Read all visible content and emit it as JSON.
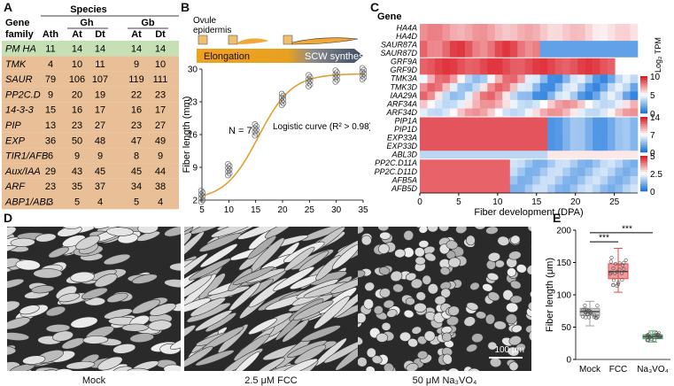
{
  "panels": {
    "a": "A",
    "b": "B",
    "c": "C",
    "d": "D",
    "e": "E"
  },
  "table": {
    "col_gene_family": "Gene family",
    "species": "Species",
    "gh": "Gh",
    "gb": "Gb",
    "ath": "Ath",
    "at": "At",
    "dt": "Dt",
    "rows": [
      {
        "name": "PM HA",
        "vals": [
          "11",
          "14",
          "14",
          "14",
          "14"
        ],
        "highlight": "green"
      },
      {
        "name": "TMK",
        "vals": [
          "4",
          "10",
          "11",
          "9",
          "10"
        ]
      },
      {
        "name": "SAUR",
        "vals": [
          "79",
          "106",
          "107",
          "119",
          "111"
        ]
      },
      {
        "name": "PP2C.D",
        "vals": [
          "9",
          "20",
          "19",
          "22",
          "23"
        ]
      },
      {
        "name": "14-3-3",
        "vals": [
          "15",
          "16",
          "17",
          "16",
          "17"
        ]
      },
      {
        "name": "PIP",
        "vals": [
          "13",
          "23",
          "27",
          "23",
          "27"
        ]
      },
      {
        "name": "EXP",
        "vals": [
          "36",
          "50",
          "48",
          "47",
          "49"
        ]
      },
      {
        "name": "TIR1/AFB",
        "vals": [
          "6",
          "9",
          "9",
          "8",
          "9"
        ]
      },
      {
        "name": "Aux/IAA",
        "vals": [
          "29",
          "43",
          "45",
          "45",
          "44"
        ]
      },
      {
        "name": "ARF",
        "vals": [
          "23",
          "35",
          "37",
          "34",
          "38"
        ]
      },
      {
        "name": "ABP1/ABL",
        "vals": [
          "3",
          "5",
          "4",
          "5",
          "4"
        ]
      }
    ],
    "colors": {
      "green": "#c5e0b4",
      "orange": "#e8bf96"
    }
  },
  "panel_b": {
    "ovule_label_1": "Ovule",
    "ovule_label_2": "epidermis",
    "elongation": "Elongation",
    "scw": "SCW synthesis",
    "n_label": "N = 7",
    "curve_label": "Logistic curve (R² > 0.98)",
    "chart_data": {
      "type": "scatter",
      "xlabel": "Fiber development (DPA)",
      "ylabel": "Fiber length (mm)",
      "x_ticks": [
        5,
        10,
        15,
        20,
        25,
        30,
        35
      ],
      "y_ticks": [
        2,
        9,
        16,
        23,
        30
      ],
      "xlim": [
        5,
        35
      ],
      "ylim": [
        2,
        30
      ],
      "x": [
        5,
        10,
        15,
        20,
        25,
        30,
        35
      ],
      "y_mean": [
        2.8,
        8.5,
        17,
        23.5,
        27.5,
        28.5,
        29
      ]
    }
  },
  "panel_c": {
    "gene_header": "Gene",
    "genes": [
      "HA4A",
      "HA4D",
      "SAUR87A",
      "SAUR87D",
      "GRF9A",
      "GRF9D",
      "TMK3A",
      "TMK3D",
      "IAA29A",
      "ARF34A",
      "ARF34D",
      "PIP1A",
      "PIP1D",
      "EXP33A",
      "EXP33D",
      "ABL3D",
      "PP2C.D11A",
      "PP2C.D11D",
      "AFB5A",
      "AFB5D"
    ],
    "xlabel": "Fiber development (DPA)",
    "x_ticks": [
      0,
      5,
      10,
      15,
      20,
      25
    ],
    "legend_title": "Log₂ TPM",
    "legends": [
      {
        "ticks": [
          "10",
          "5",
          "0"
        ]
      },
      {
        "ticks": [
          "14",
          "7",
          "0"
        ]
      },
      {
        "ticks": [
          "5",
          "2.5",
          "0"
        ]
      }
    ]
  },
  "panel_d": {
    "captions": [
      "Mock",
      "2.5 μM FCC",
      "50 μM Na₃VO₄"
    ],
    "scale_bar": "100 μm"
  },
  "panel_e": {
    "sig1": "***",
    "sig2": "***",
    "chart_data": {
      "type": "box",
      "categories": [
        "Mock",
        "FCC",
        "Na₃VO₄"
      ],
      "ylabel": "Fiber length (μm)",
      "ylim": [
        0,
        200
      ],
      "y_ticks": [
        0,
        50,
        100,
        150,
        200
      ],
      "series": [
        {
          "name": "Mock",
          "q1": 68,
          "median": 74,
          "q3": 79,
          "min": 52,
          "max": 90,
          "color": "#9e9e9e"
        },
        {
          "name": "FCC",
          "q1": 125,
          "median": 136,
          "q3": 148,
          "min": 104,
          "max": 172,
          "color": "#e8474a"
        },
        {
          "name": "Na₃VO₄",
          "q1": 32,
          "median": 35,
          "q3": 38,
          "min": 27,
          "max": 44,
          "color": "#3aa357"
        }
      ]
    }
  }
}
